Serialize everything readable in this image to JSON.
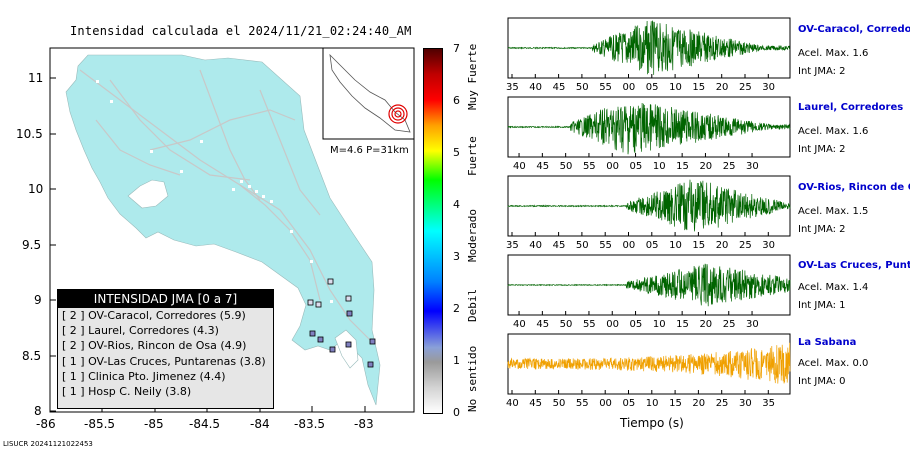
{
  "map": {
    "title": "Intensidad calculada el 2024/11/21_02:24:40_AM",
    "x_ticks": [
      "-86",
      "-85.5",
      "-85",
      "-84.5",
      "-84",
      "-83.5",
      "-83"
    ],
    "y_ticks": [
      "11",
      "10.5",
      "10",
      "9.5",
      "9",
      "8.5",
      "8"
    ],
    "inset_label": "M=4.6 P=31km",
    "footer_id": "LISUCR 20241121022453",
    "legend": {
      "header": "INTENSIDAD JMA [0 a 7]",
      "rows": [
        "[ 2 ]  OV-Caracol, Corredores (5.9)",
        "[ 2 ]  Laurel, Corredores (4.3)",
        "[ 2 ]  OV-Rios, Rincon de Osa (4.9)",
        "[ 1 ]  OV-Las Cruces, Puntarenas (3.8)",
        "[ 1 ]  Clinica Pto. Jimenez (4.4)",
        "[ 1 ]  Hosp C. Neily (3.8)"
      ]
    }
  },
  "colorbar": {
    "ticks": [
      "0",
      "1",
      "2",
      "3",
      "4",
      "5",
      "6",
      "7"
    ],
    "labels": [
      "No sentido",
      "Debil",
      "Moderado",
      "Fuerte",
      "Muy Fuerte"
    ]
  },
  "traces": [
    {
      "name": "OV-Caracol, Corredore",
      "acel": "Acel. Max. 1.6",
      "int": "Int JMA: 2",
      "color": "#006400",
      "ticks": [
        "35",
        "40",
        "45",
        "50",
        "55",
        "00",
        "05",
        "10",
        "15",
        "20",
        "25",
        "30"
      ]
    },
    {
      "name": "Laurel, Corredores",
      "acel": "Acel. Max. 1.6",
      "int": "Int JMA: 2",
      "color": "#006400",
      "ticks": [
        "40",
        "45",
        "50",
        "55",
        "00",
        "05",
        "10",
        "15",
        "20",
        "25",
        "30"
      ]
    },
    {
      "name": "OV-Rios, Rincon de Os",
      "acel": "Acel. Max. 1.5",
      "int": "Int JMA: 2",
      "color": "#006400",
      "ticks": [
        "35",
        "40",
        "45",
        "50",
        "55",
        "00",
        "05",
        "10",
        "15",
        "20",
        "25",
        "30"
      ]
    },
    {
      "name": "OV-Las Cruces, Puntar",
      "acel": "Acel. Max. 1.4",
      "int": "Int JMA: 1",
      "color": "#006400",
      "ticks": [
        "40",
        "45",
        "50",
        "55",
        "00",
        "05",
        "10",
        "15",
        "20",
        "25",
        "30"
      ]
    },
    {
      "name": "La Sabana",
      "acel": "Acel. Max. 0.0",
      "int": "Int JMA: 0",
      "color": "#f0a000",
      "ticks": [
        "40",
        "45",
        "50",
        "55",
        "00",
        "05",
        "10",
        "15",
        "20",
        "25",
        "30",
        "35"
      ]
    }
  ],
  "xlabel": "Tiempo (s)"
}
